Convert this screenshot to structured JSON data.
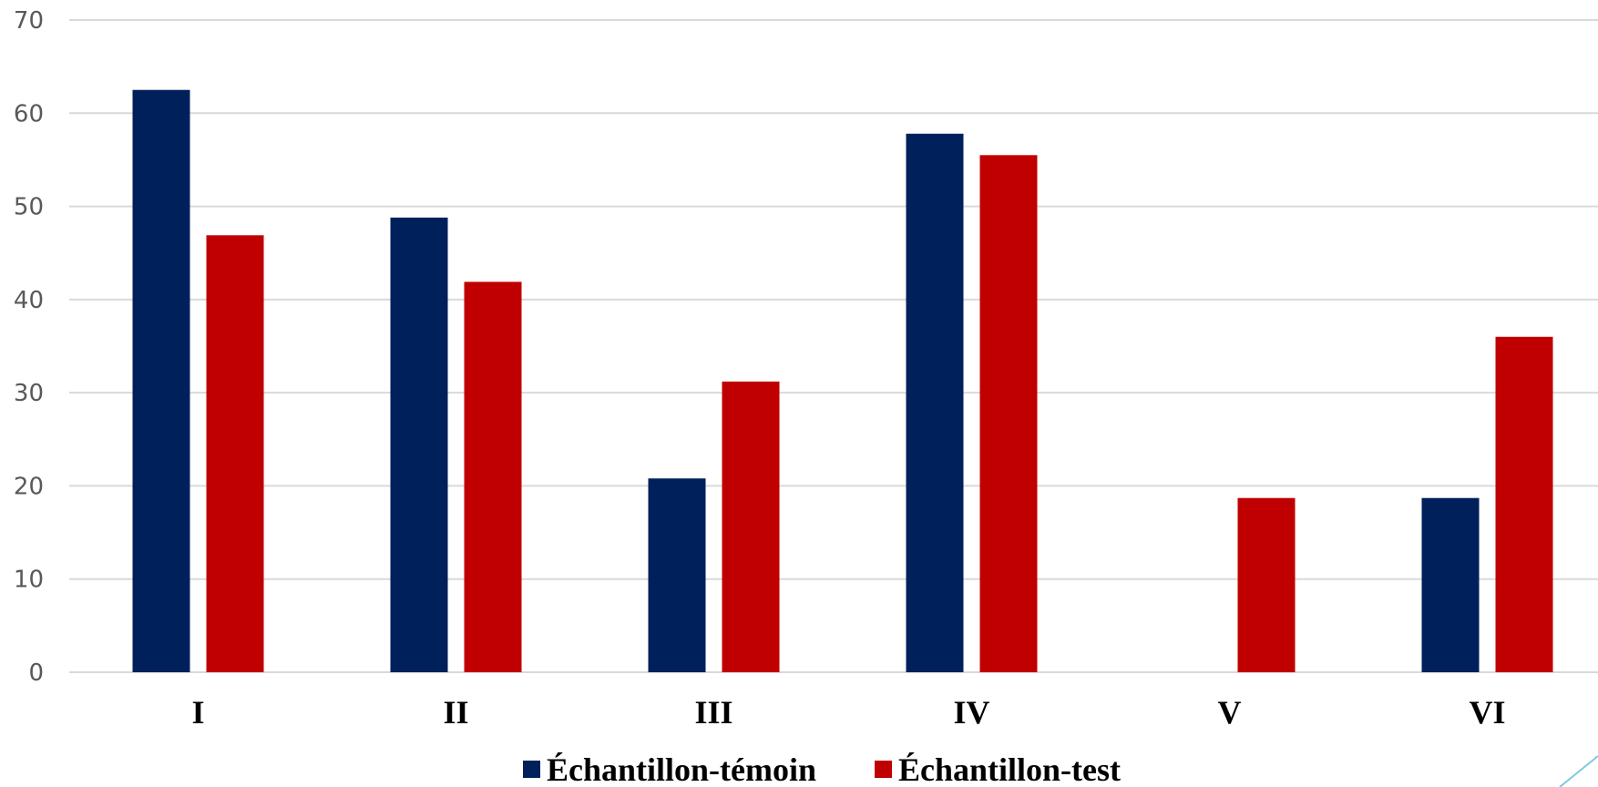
{
  "chart_data": {
    "type": "bar",
    "title": "",
    "xlabel": "",
    "ylabel": "",
    "categories": [
      "I",
      "II",
      "III",
      "IV",
      "V",
      "VI"
    ],
    "series": [
      {
        "name": "Échantillon-témoin",
        "color": "#00205b",
        "values": [
          62.5,
          48.8,
          20.8,
          57.8,
          0,
          18.7
        ]
      },
      {
        "name": "Échantillon-test",
        "color": "#c00000",
        "values": [
          46.9,
          41.9,
          31.2,
          55.5,
          18.7,
          36.0
        ]
      }
    ],
    "ylim": [
      0,
      70
    ],
    "yticks": [
      0,
      10,
      20,
      30,
      40,
      50,
      60,
      70
    ],
    "grid": true,
    "legend": "bottom-center"
  }
}
